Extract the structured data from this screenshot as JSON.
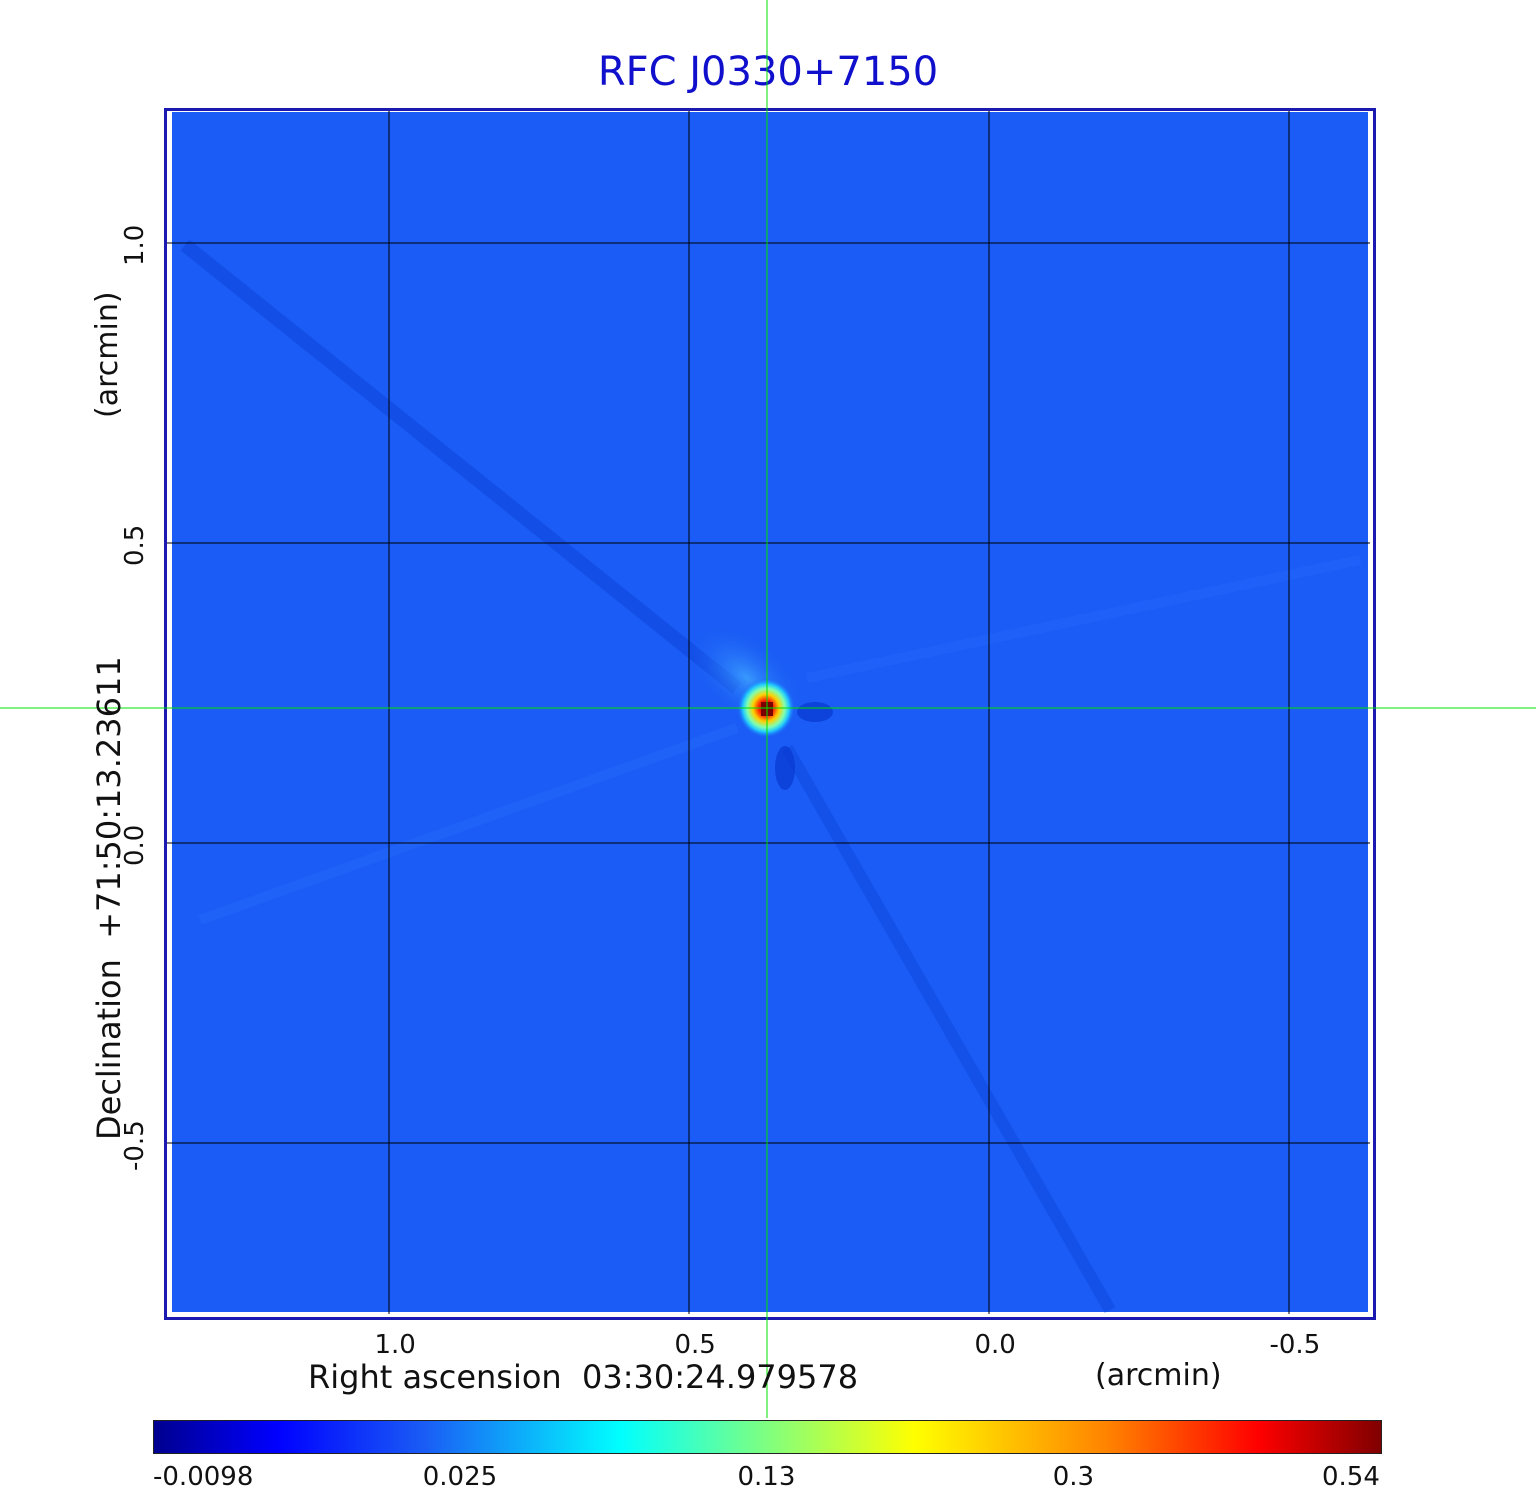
{
  "chart_data": {
    "type": "heatmap",
    "title": "RFC J0330+7150",
    "xlabel": "Right ascension  03:30:24.979578",
    "xunit": "(arcmin)",
    "ylabel": "Declination  +71:50:13.23611",
    "yunit": "(arcmin)",
    "x_ticks": [
      "1.0",
      "0.5",
      "0.0",
      "-0.5"
    ],
    "y_ticks": [
      "1.0",
      "0.5",
      "0.0",
      "-0.5"
    ],
    "x_tick_values": [
      1.0,
      0.5,
      0.0,
      -0.5
    ],
    "y_tick_values": [
      1.0,
      0.5,
      0.0,
      -0.5
    ],
    "xlim": [
      1.375,
      -0.64
    ],
    "ylim": [
      -0.79,
      1.225
    ],
    "grid": true,
    "crosshair": {
      "x": 0.37,
      "y": 0.225
    },
    "peak": {
      "x": 0.37,
      "y": 0.225,
      "value": 0.54
    },
    "colorbar": {
      "ticks": [
        "-0.0098",
        "0.025",
        "0.13",
        "0.3",
        "0.54"
      ],
      "min": -0.0098,
      "max": 0.54,
      "colormap": [
        "#00008f",
        "#0000ff",
        "#1a5cf5",
        "#00ffff",
        "#ffff00",
        "#ff8000",
        "#ff0000",
        "#800000"
      ]
    },
    "colors": {
      "background": "#1a5cf5",
      "grid": "#000000",
      "crosshair": "#00e000",
      "title": "#1010cc",
      "frame": "#1a1ab0"
    }
  }
}
